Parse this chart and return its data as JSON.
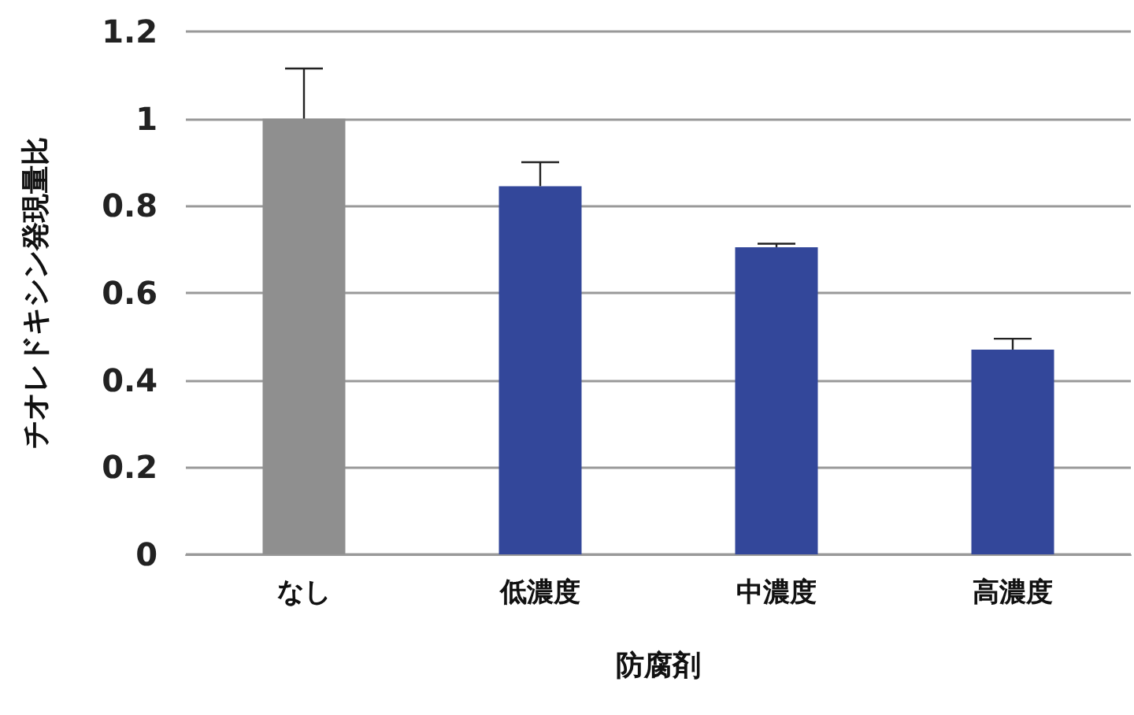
{
  "chart_data": {
    "type": "bar",
    "xlabel": "防腐剤",
    "ylabel": "チオレドキシン発現量比",
    "categories": [
      "なし",
      "低濃度",
      "中濃度",
      "高濃度"
    ],
    "values": [
      1,
      0.845,
      0.705,
      0.47
    ],
    "colors": [
      "#8f8f8f",
      "#33479a",
      "#33479a",
      "#33479a"
    ],
    "errors": [
      [
        1,
        1.115
      ],
      [
        0.845,
        0.9
      ],
      [
        0.705,
        0.713
      ],
      [
        0.47,
        0.495
      ]
    ],
    "ylim": [
      0,
      1.2
    ],
    "yticks": [
      0,
      0.2,
      0.4,
      0.6,
      0.8,
      1,
      1.2
    ],
    "grid": "y"
  }
}
